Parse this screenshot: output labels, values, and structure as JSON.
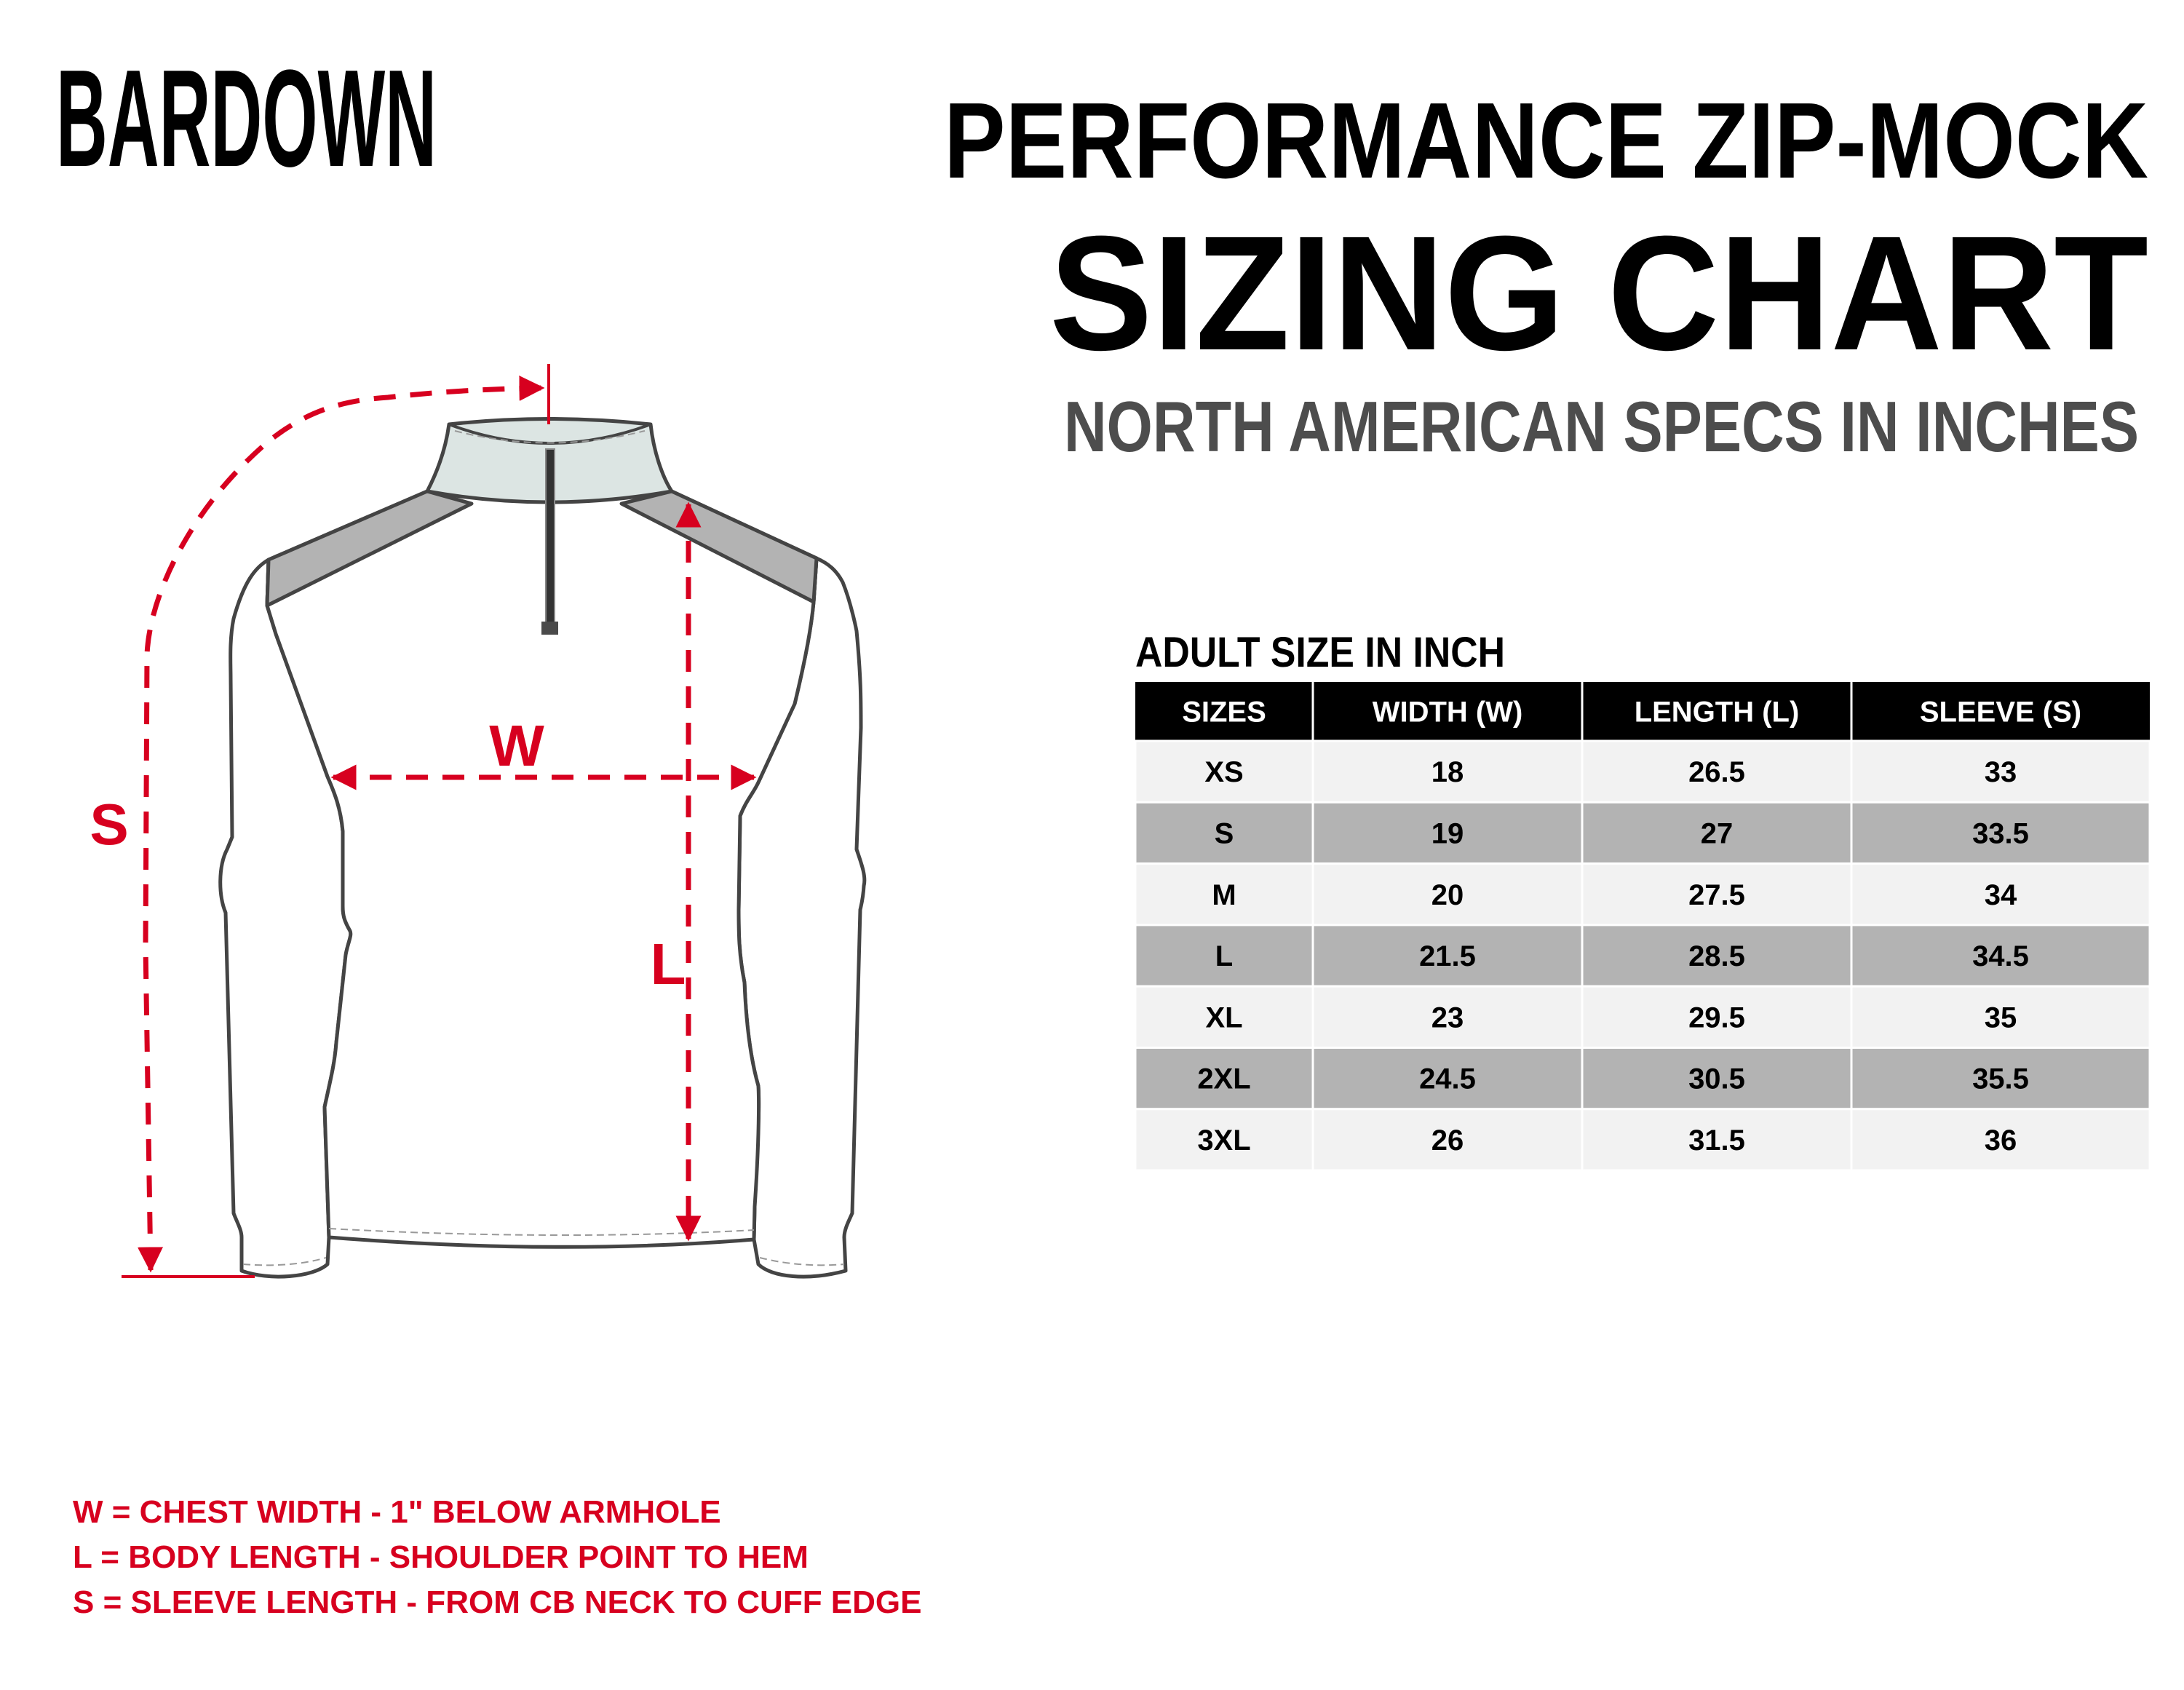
{
  "brand": {
    "logo_text": "BARDOWN"
  },
  "header": {
    "product": "PERFORMANCE ZIP-MOCK",
    "title": "SIZING CHART",
    "subtitle": "NORTH AMERICAN SPECS IN INCHES"
  },
  "colors": {
    "accent_red": "#d7001f",
    "header_bg": "#000000",
    "row_light": "#f2f2f2",
    "row_dark": "#b3b3b3",
    "subtitle_grey": "#4d4d4d"
  },
  "diagram": {
    "labels": {
      "width": "W",
      "length": "L",
      "sleeve": "S"
    }
  },
  "table": {
    "caption": "ADULT SIZE IN INCH",
    "headers": [
      "SIZES",
      "WIDTH (W)",
      "LENGTH (L)",
      "SLEEVE (S)"
    ],
    "rows": [
      [
        "XS",
        "18",
        "26.5",
        "33"
      ],
      [
        "S",
        "19",
        "27",
        "33.5"
      ],
      [
        "M",
        "20",
        "27.5",
        "34"
      ],
      [
        "L",
        "21.5",
        "28.5",
        "34.5"
      ],
      [
        "XL",
        "23",
        "29.5",
        "35"
      ],
      [
        "2XL",
        "24.5",
        "30.5",
        "35.5"
      ],
      [
        "3XL",
        "26",
        "31.5",
        "36"
      ]
    ]
  },
  "legend": [
    "W = CHEST WIDTH - 1\" BELOW ARMHOLE",
    "L = BODY LENGTH - SHOULDER POINT TO HEM",
    "S = SLEEVE LENGTH - FROM CB NECK TO CUFF EDGE"
  ]
}
